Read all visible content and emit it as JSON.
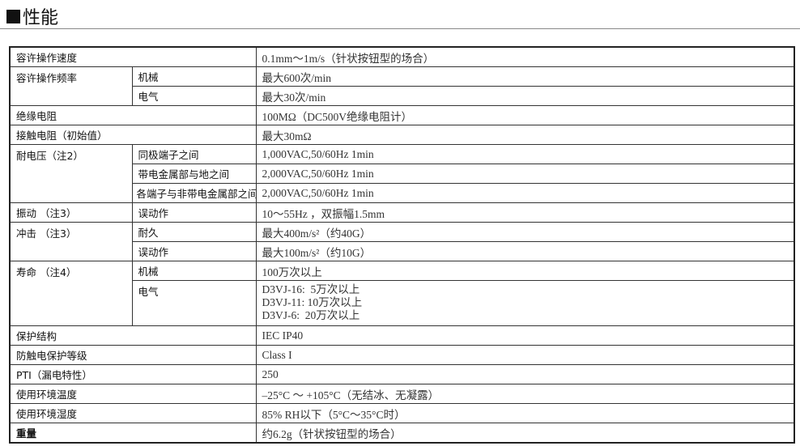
{
  "title": "性能",
  "rows": {
    "speed": {
      "label": "容许操作速度",
      "value": "0.1mm～1m/s（针状按钮型的场合）"
    },
    "freq": {
      "label": "容许操作频率",
      "mech": "机械",
      "mech_value": "最大600次/min",
      "elec": "电气",
      "elec_value": "最大30次/min"
    },
    "insulation": {
      "label": "绝缘电阻",
      "value": "100MΩ（DC500V绝缘电阻计）"
    },
    "contact": {
      "label": "接触电阻（初始值）",
      "value": "最大30mΩ"
    },
    "withstand": {
      "label": "耐电压（注2）",
      "a": "同极端子之间",
      "a_value": "1,000VAC,50/60Hz 1min",
      "b": "带电金属部与地之间",
      "b_value": "2,000VAC,50/60Hz 1min",
      "c": "各端子与非带电金属部之间",
      "c_value": "2,000VAC,50/60Hz 1min"
    },
    "vibration": {
      "label": "振动 （注3）",
      "sub": "误动作",
      "value": "10～55Hz ，双振幅1.5mm"
    },
    "shock": {
      "label": "冲击 （注3）",
      "a": "耐久",
      "a_value": "最大400m/s²（约40G）",
      "b": "误动作",
      "b_value": "最大100m/s²（约10G）"
    },
    "life": {
      "label": "寿命 （注4）",
      "mech": "机械",
      "mech_value": "100万次以上",
      "elec": "电气",
      "elec_values": [
        "D3VJ-16:  5万次以上",
        "D3VJ-11: 10万次以上",
        "D3VJ-6:  20万次以上"
      ]
    },
    "protection": {
      "label": "保护结构",
      "value": "IEC IP40"
    },
    "shockprot": {
      "label": "防触电保护等级",
      "value": "Class I"
    },
    "pti": {
      "label": "PTI（漏电特性）",
      "value": "250"
    },
    "temp": {
      "label": "使用环境温度",
      "value": "–25°C ～ +105°C（无结冰、无凝露）"
    },
    "humidity": {
      "label": "使用环境湿度",
      "value": "85% RH以下（5°C～35°C时）"
    },
    "weight": {
      "label": "重量",
      "value": "约6.2g（针状按钮型的场合）"
    }
  }
}
